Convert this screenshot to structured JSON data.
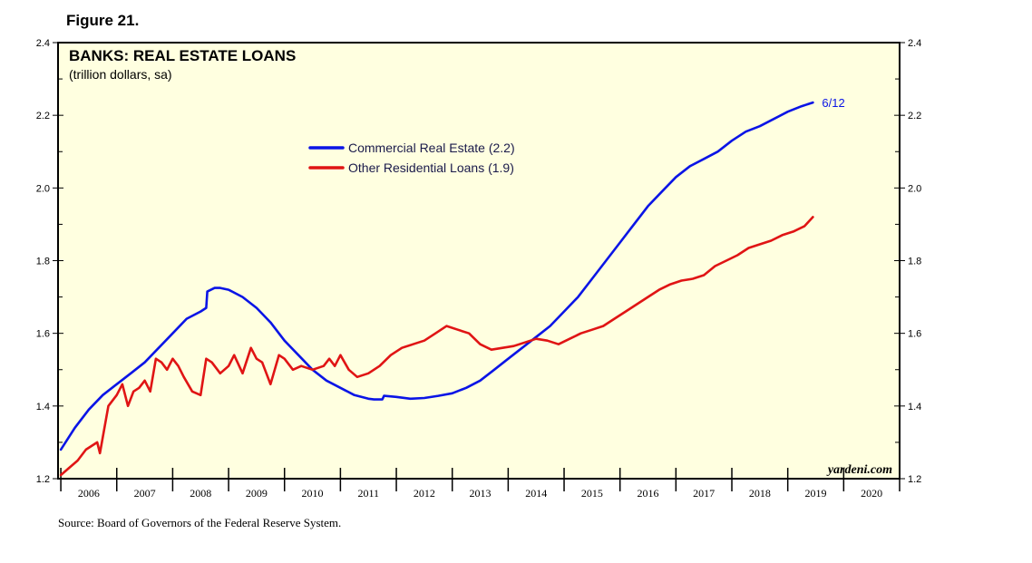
{
  "figure_label": "Figure 21.",
  "source": "Source: Board of Governors of the Federal Reserve System.",
  "colors": {
    "plot_bg": "#ffffe0",
    "commercial": "#0a14e6",
    "residential": "#e01414",
    "axis": "#000000"
  },
  "chart_data": {
    "type": "line",
    "title": "BANKS: REAL ESTATE LOANS",
    "subtitle": "(trillion dollars, sa)",
    "xlabel": "",
    "ylabel": "",
    "xlim": [
      2005.95,
      2021.0
    ],
    "ylim": [
      1.2,
      2.4
    ],
    "yticks": [
      "1.2",
      "1.4",
      "1.6",
      "1.8",
      "2.0",
      "2.2",
      "2.4"
    ],
    "year_labels": [
      "2006",
      "2007",
      "2008",
      "2009",
      "2010",
      "2011",
      "2012",
      "2013",
      "2014",
      "2015",
      "2016",
      "2017",
      "2018",
      "2019",
      "2020"
    ],
    "grid": false,
    "legend_position": "upper-middle",
    "end_annotation": "6/12",
    "watermark": "yardeni.com",
    "series": [
      {
        "name": "Commercial Real Estate (2.2)",
        "color": "#0a14e6",
        "x": [
          2006.0,
          2006.25,
          2006.5,
          2006.75,
          2007.0,
          2007.25,
          2007.5,
          2007.75,
          2008.0,
          2008.25,
          2008.5,
          2008.6,
          2008.62,
          2008.75,
          2008.85,
          2009.0,
          2009.25,
          2009.5,
          2009.75,
          2010.0,
          2010.25,
          2010.5,
          2010.75,
          2011.0,
          2011.25,
          2011.5,
          2011.6,
          2011.75,
          2011.78,
          2012.0,
          2012.25,
          2012.5,
          2012.75,
          2013.0,
          2013.25,
          2013.5,
          2013.75,
          2014.0,
          2014.25,
          2014.5,
          2014.75,
          2015.0,
          2015.25,
          2015.5,
          2015.75,
          2016.0,
          2016.25,
          2016.5,
          2016.75,
          2017.0,
          2017.25,
          2017.5,
          2017.75,
          2018.0,
          2018.25,
          2018.5,
          2018.75,
          2019.0,
          2019.25,
          2019.45
        ],
        "values": [
          1.28,
          1.34,
          1.39,
          1.43,
          1.46,
          1.49,
          1.52,
          1.56,
          1.6,
          1.64,
          1.66,
          1.67,
          1.715,
          1.725,
          1.725,
          1.72,
          1.7,
          1.67,
          1.63,
          1.58,
          1.54,
          1.5,
          1.47,
          1.45,
          1.43,
          1.42,
          1.418,
          1.418,
          1.428,
          1.425,
          1.42,
          1.422,
          1.428,
          1.435,
          1.45,
          1.47,
          1.5,
          1.53,
          1.56,
          1.59,
          1.62,
          1.66,
          1.7,
          1.75,
          1.8,
          1.85,
          1.9,
          1.95,
          1.99,
          2.03,
          2.06,
          2.08,
          2.1,
          2.13,
          2.155,
          2.17,
          2.19,
          2.21,
          2.225,
          2.235
        ]
      },
      {
        "name": "Other Residential Loans (1.9)",
        "color": "#e01414",
        "x": [
          2006.0,
          2006.15,
          2006.3,
          2006.45,
          2006.65,
          2006.7,
          2006.85,
          2007.0,
          2007.1,
          2007.2,
          2007.3,
          2007.4,
          2007.5,
          2007.6,
          2007.7,
          2007.8,
          2007.9,
          2008.0,
          2008.1,
          2008.2,
          2008.35,
          2008.5,
          2008.6,
          2008.7,
          2008.85,
          2009.0,
          2009.1,
          2009.25,
          2009.4,
          2009.5,
          2009.6,
          2009.75,
          2009.9,
          2010.0,
          2010.15,
          2010.3,
          2010.5,
          2010.7,
          2010.8,
          2010.9,
          2011.0,
          2011.15,
          2011.3,
          2011.5,
          2011.7,
          2011.9,
          2012.1,
          2012.3,
          2012.5,
          2012.7,
          2012.9,
          2013.1,
          2013.3,
          2013.5,
          2013.7,
          2013.9,
          2014.1,
          2014.3,
          2014.5,
          2014.7,
          2014.9,
          2015.1,
          2015.3,
          2015.5,
          2015.7,
          2015.9,
          2016.1,
          2016.3,
          2016.5,
          2016.7,
          2016.9,
          2017.1,
          2017.3,
          2017.5,
          2017.7,
          2017.9,
          2018.1,
          2018.3,
          2018.5,
          2018.7,
          2018.9,
          2019.1,
          2019.3,
          2019.45
        ],
        "values": [
          1.21,
          1.23,
          1.25,
          1.28,
          1.3,
          1.27,
          1.4,
          1.43,
          1.46,
          1.4,
          1.44,
          1.45,
          1.47,
          1.44,
          1.53,
          1.52,
          1.5,
          1.53,
          1.51,
          1.48,
          1.44,
          1.43,
          1.53,
          1.52,
          1.49,
          1.51,
          1.54,
          1.49,
          1.56,
          1.53,
          1.52,
          1.46,
          1.54,
          1.53,
          1.5,
          1.51,
          1.5,
          1.51,
          1.53,
          1.51,
          1.54,
          1.5,
          1.48,
          1.49,
          1.51,
          1.54,
          1.56,
          1.57,
          1.58,
          1.6,
          1.62,
          1.61,
          1.6,
          1.57,
          1.555,
          1.56,
          1.565,
          1.575,
          1.585,
          1.58,
          1.57,
          1.585,
          1.6,
          1.61,
          1.62,
          1.64,
          1.66,
          1.68,
          1.7,
          1.72,
          1.735,
          1.745,
          1.75,
          1.76,
          1.785,
          1.8,
          1.815,
          1.835,
          1.845,
          1.855,
          1.87,
          1.88,
          1.895,
          1.92
        ]
      }
    ]
  }
}
